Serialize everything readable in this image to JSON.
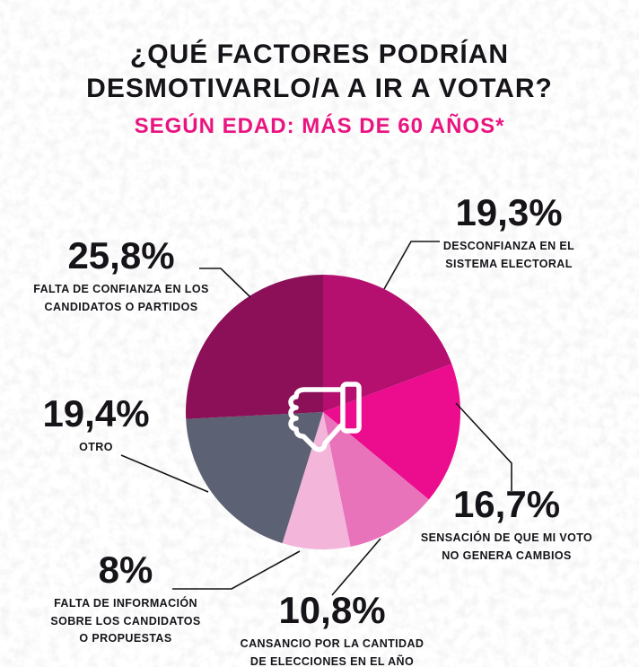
{
  "header": {
    "title_line1": "¿QUÉ FACTORES PODRÍAN",
    "title_line2": "DESMOTIVARLO/A A IR A VOTAR?",
    "subtitle": "SEGÚN EDAD: MÁS DE 60 AÑOS*"
  },
  "colors": {
    "title": "#171419",
    "subtitle": "#ea1480",
    "label_text": "#171419",
    "background": "#ffffff",
    "texture": "#d4d4d4",
    "center_icon": "#ffffff"
  },
  "center_icon": "thumbs-down-icon",
  "chart_data": {
    "type": "pie",
    "title": "¿Qué factores podrían desmotivarlo/a a ir a votar? Según edad: más de 60 años*",
    "unit": "%",
    "start_angle_deg": 0,
    "direction": "clockwise",
    "legend_position": "callouts-around-pie",
    "slices": [
      {
        "value_pct": 19.3,
        "value_label": "19,3%",
        "label": "DESCONFIANZA EN EL SISTEMA ELECTORAL",
        "label_lines": [
          "DESCONFIANZA EN EL",
          "SISTEMA ELECTORAL"
        ],
        "color": "#b5106f"
      },
      {
        "value_pct": 16.7,
        "value_label": "16,7%",
        "label": "SENSACIÓN DE QUE MI VOTO NO GENERA CAMBIOS",
        "label_lines": [
          "SENSACIÓN DE QUE MI VOTO",
          "NO GENERA CAMBIOS"
        ],
        "color": "#ec0d8e"
      },
      {
        "value_pct": 10.8,
        "value_label": "10,8%",
        "label": "CANSANCIO POR LA CANTIDAD DE ELECCIONES EN EL AÑO",
        "label_lines": [
          "CANSANCIO POR LA CANTIDAD",
          "DE ELECCIONES EN EL AÑO"
        ],
        "color": "#e973bb"
      },
      {
        "value_pct": 8,
        "value_label": "8%",
        "label": "FALTA DE INFORMACIÓN SOBRE LOS CANDIDATOS O PROPUESTAS",
        "label_lines": [
          "FALTA DE INFORMACIÓN",
          "SOBRE LOS CANDIDATOS",
          "O PROPUESTAS"
        ],
        "color": "#f3b5da"
      },
      {
        "value_pct": 19.4,
        "value_label": "19,4%",
        "label": "OTRO",
        "label_lines": [
          "OTRO"
        ],
        "color": "#5c6173"
      },
      {
        "value_pct": 25.8,
        "value_label": "25,8%",
        "label": "FALTA DE CONFIANZA EN LOS CANDIDATOS O PARTIDOS",
        "label_lines": [
          "FALTA DE CONFIANZA EN LOS",
          "CANDIDATOS O PARTIDOS"
        ],
        "color": "#8c1058"
      }
    ]
  }
}
